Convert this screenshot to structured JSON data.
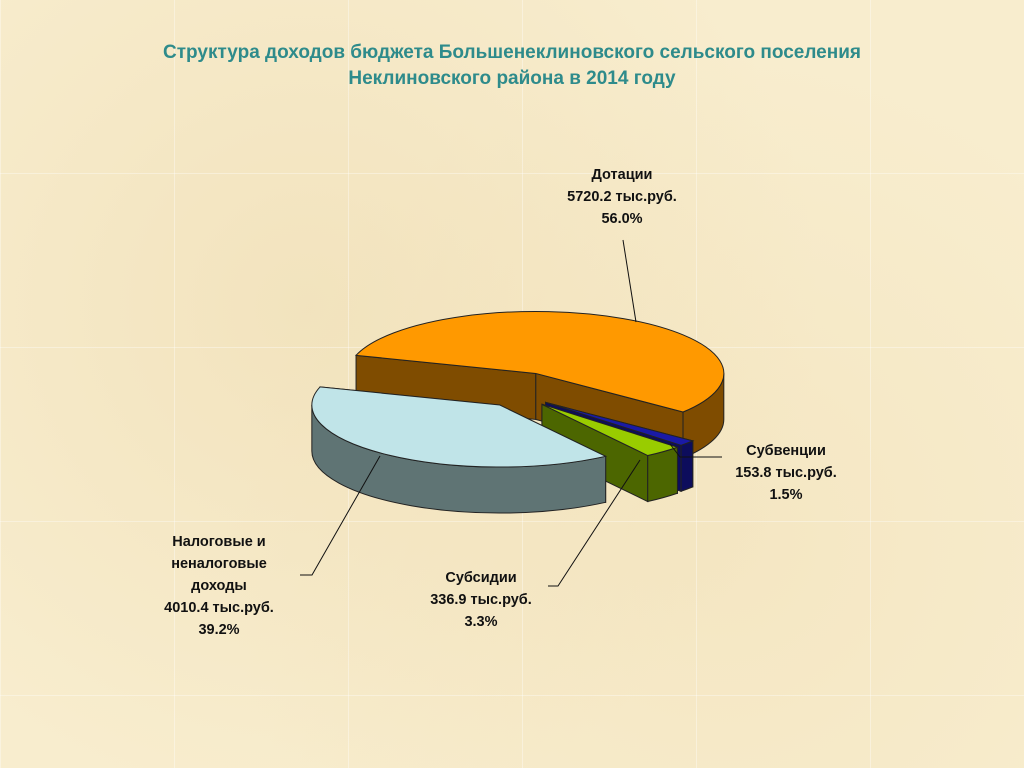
{
  "slide": {
    "title_line1": "Структура доходов бюджета Большенеклиновского сельского поселения",
    "title_line2": "Неклиновского района в 2014 году"
  },
  "chart_data": {
    "type": "pie",
    "three_d": true,
    "exploded": true,
    "title": "Структура доходов бюджета Большенеклиновского сельского поселения Неклиновского района в 2014 году",
    "unit": "тыс.руб.",
    "slices": [
      {
        "label_lines": [
          "Дотации"
        ],
        "value": 5720.2,
        "value_text": "5720.2 тыс.руб.",
        "percent_text": "56.0%",
        "top_color": "#ff9900",
        "side_color": "#7f4c00"
      },
      {
        "label_lines": [
          "Субвенции"
        ],
        "value": 153.8,
        "value_text": "153.8 тыс.руб.",
        "percent_text": "1.5%",
        "top_color": "#1a1aa6",
        "side_color": "#0d0d5c"
      },
      {
        "label_lines": [
          "Субсидии"
        ],
        "value": 336.9,
        "value_text": "336.9 тыс.руб.",
        "percent_text": "3.3%",
        "top_color": "#99cc00",
        "side_color": "#4c6600"
      },
      {
        "label_lines": [
          "Налоговые и",
          "неналоговые",
          "доходы"
        ],
        "value": 4010.4,
        "value_text": "4010.4 тыс.руб.",
        "percent_text": "39.2%",
        "top_color": "#c0e4e8",
        "side_color": "#5f7474"
      }
    ]
  }
}
